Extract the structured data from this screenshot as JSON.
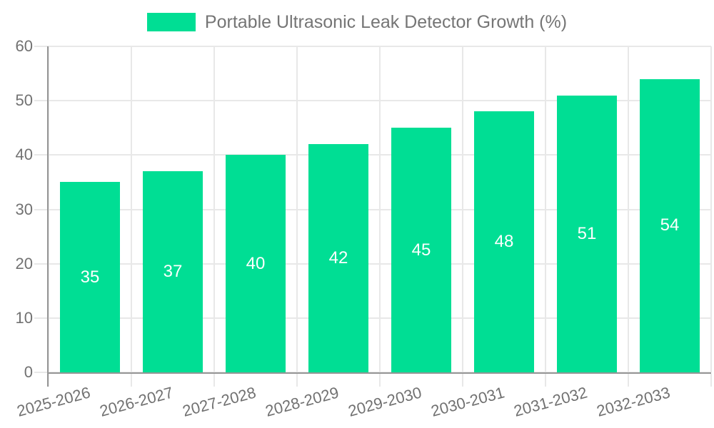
{
  "chart_data": {
    "type": "bar",
    "title": "Portable Ultrasonic Leak Detector Growth (%)",
    "categories": [
      "2025-2026",
      "2026-2027",
      "2027-2028",
      "2028-2029",
      "2029-2030",
      "2030-2031",
      "2031-2032",
      "2032-2033"
    ],
    "values": [
      35,
      37,
      40,
      42,
      45,
      48,
      51,
      54
    ],
    "series": [
      {
        "name": "Portable Ultrasonic Leak Detector Growth (%)",
        "values": [
          35,
          37,
          40,
          42,
          45,
          48,
          51,
          54
        ]
      }
    ],
    "xlabel": "",
    "ylabel": "",
    "ylim": [
      0,
      60
    ],
    "yticks": [
      0,
      10,
      20,
      30,
      40,
      50,
      60
    ],
    "grid": true,
    "legend_position": "top",
    "value_labels": "inside-center",
    "colors": {
      "bar": "#00DE94",
      "grid": "#e8e8e8",
      "axis": "#969696",
      "tick_text": "#717171",
      "title_text": "#757575",
      "value_text": "#ffffff",
      "background": "#ffffff"
    }
  }
}
